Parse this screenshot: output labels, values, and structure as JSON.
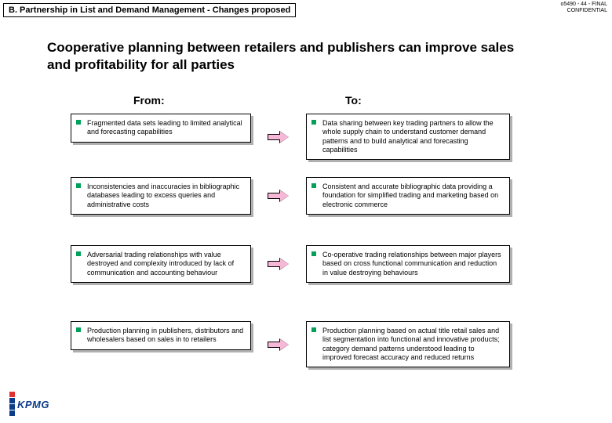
{
  "header": "B. Partnership in List and Demand Management - Changes proposed",
  "meta": {
    "line1": "o5490 - 44 - FINAL",
    "line2": "CONFIDENTIAL"
  },
  "title": "Cooperative planning between retailers and publishers can improve sales and profitability for all parties",
  "columns": {
    "from": "From:",
    "to": "To:"
  },
  "rows": [
    {
      "from": "Fragmented data sets leading to limited analytical and forecasting capabilities",
      "to": "Data sharing between key trading partners to allow the whole supply chain to understand customer demand patterns and to build analytical and forecasting capabilities"
    },
    {
      "from": "Inconsistencies and inaccuracies in bibliographic databases leading to excess queries and administrative costs",
      "to": "Consistent and accurate bibliographic data providing a foundation for simplified trading and marketing based on electronic commerce"
    },
    {
      "from": "Adversarial trading relationships with value destroyed and complexity introduced by lack of communication and accounting behaviour",
      "to": "Co-operative trading relationships between major players based on cross functional communication and reduction in value destroying behaviours"
    },
    {
      "from": "Production planning in publishers, distributors and wholesalers based on sales in to retailers",
      "to": "Production planning based on actual title retail sales and list segmentation into functional and innovative products; category demand patterns understood leading to improved forecast accuracy and reduced returns"
    }
  ],
  "logo_text": "KPMG",
  "colors": {
    "bullet": "#00a05a",
    "arrow_fill": "#f7b8d8",
    "logo_blue": "#0b3c8c",
    "logo_red": "#e03030"
  }
}
